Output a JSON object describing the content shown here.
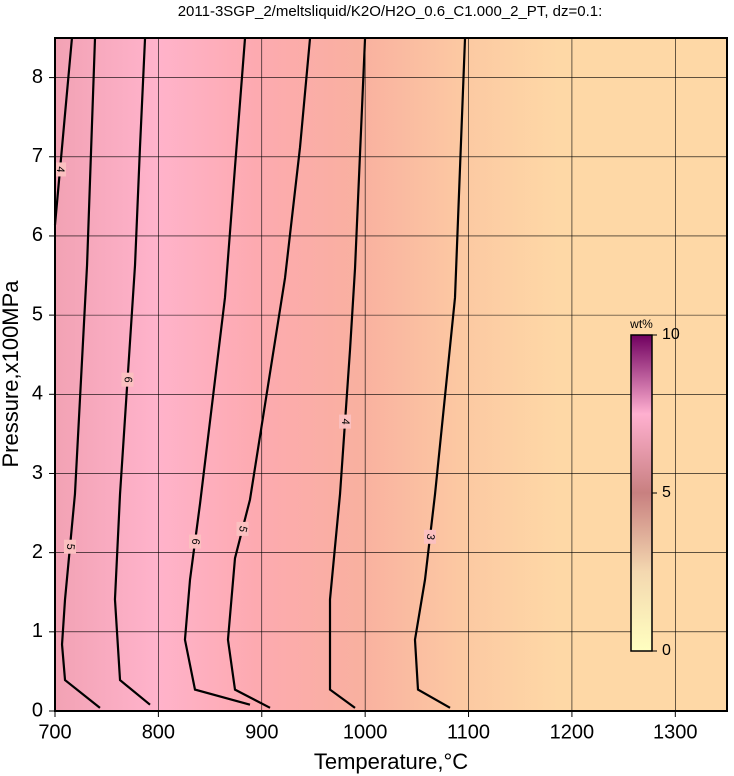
{
  "chart_data": {
    "type": "contour",
    "title": "2011-3SGP_2/meltsliquid/K2O/H2O_0.6_C1.000_2_PT, dz=0.1:",
    "x_label": "Temperature,°C",
    "y_label": "Pressure,x100MPa",
    "xlim": [
      700,
      1350
    ],
    "ylim": [
      0,
      8.5
    ],
    "xticks": [
      700,
      800,
      900,
      1000,
      1100,
      1200,
      1300
    ],
    "yticks": [
      0,
      1,
      2,
      3,
      4,
      5,
      6,
      7,
      8
    ],
    "grid": true,
    "contours": [
      {
        "level": 4,
        "x": [
          700,
          709.7,
          716.4
        ],
        "y": [
          6.14,
          7.54,
          8.5
        ]
      },
      {
        "level": 5,
        "x": [
          743.5,
          709.7,
          706.8,
          709.7,
          719.3,
          731.0,
          738.7
        ],
        "y": [
          0.04,
          0.39,
          0.84,
          1.41,
          2.74,
          5.63,
          8.5
        ]
      },
      {
        "level": 6,
        "x": [
          791.9,
          762.9,
          758.0,
          762.9,
          777.4,
          782.2,
          787.1
        ],
        "y": [
          0.08,
          0.39,
          1.41,
          2.74,
          5.63,
          7.12,
          8.5
        ]
      },
      {
        "level": 6,
        "x": [
          888.6,
          835.4,
          825.7,
          830.6,
          840.3,
          864.4,
          874.1,
          883.8
        ],
        "y": [
          0.08,
          0.27,
          0.9,
          1.66,
          2.62,
          5.22,
          6.87,
          8.5
        ]
      },
      {
        "level": 5,
        "x": [
          908.0,
          874.1,
          867.3,
          874.1,
          888.6,
          922.5,
          937.0,
          946.7
        ],
        "y": [
          0.04,
          0.27,
          0.9,
          1.93,
          2.67,
          5.47,
          7.12,
          8.5
        ]
      },
      {
        "level": 4,
        "x": [
          990.2,
          966.0,
          966.0,
          975.7,
          985.4,
          990.2,
          999.9
        ],
        "y": [
          0.04,
          0.27,
          1.41,
          2.74,
          4.57,
          5.59,
          8.5
        ]
      },
      {
        "level": 3,
        "x": [
          1082.1,
          1051.1,
          1048.2,
          1057.9,
          1067.6,
          1086.9,
          1096.6
        ],
        "y": [
          0.04,
          0.27,
          0.9,
          1.66,
          2.74,
          5.22,
          8.5
        ]
      }
    ],
    "colorbar": {
      "label": "wt%",
      "zlim": [
        0,
        10
      ],
      "zticks": [
        0,
        5,
        10
      ]
    }
  }
}
